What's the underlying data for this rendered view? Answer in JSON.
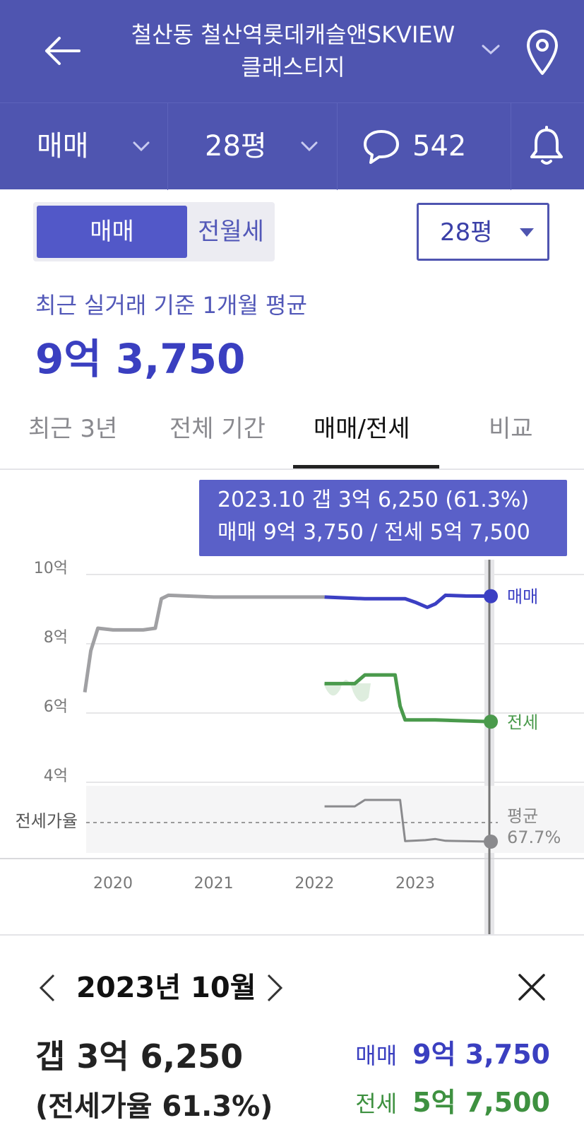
{
  "header": {
    "title_line1": "철산동 철산역롯데캐슬앤SKVIEW",
    "title_line2": "클래스티지"
  },
  "subbar": {
    "trade_type": "매매",
    "size": "28평",
    "comment_count": "542"
  },
  "toggle": {
    "sale": "매매",
    "rent": "전월세"
  },
  "size_select": "28평",
  "average": {
    "caption": "최근 실거래 기준 1개월 평균",
    "price": "9억 3,750"
  },
  "tabs": [
    {
      "label": "최근 3년"
    },
    {
      "label": "전체 기간"
    },
    {
      "label": "매매/전세"
    },
    {
      "label": "비교"
    }
  ],
  "tooltip": {
    "line1": "2023.10  갭 3억 6,250 (61.3%)",
    "line2": "매매 9억 3,750 / 전세 5억 7,500"
  },
  "chart_data": {
    "type": "line",
    "ylim": [
      4,
      10
    ],
    "yticks": [
      "10억",
      "8억",
      "6억",
      "4억"
    ],
    "xticks": [
      "2020",
      "2021",
      "2022",
      "2023"
    ],
    "ratio_axis_label": "전세가율",
    "ratio_avg_label": "평균",
    "ratio_avg_value": "67.7%",
    "series": [
      {
        "name": "매매",
        "color": "#3b3fc3",
        "unit": "억",
        "x": [
          2019.72,
          2019.78,
          2019.85,
          2020.0,
          2020.3,
          2020.42,
          2020.48,
          2020.55,
          2021.0,
          2021.5,
          2022.1,
          2022.5,
          2022.9,
          2023.0,
          2023.12,
          2023.2,
          2023.3,
          2023.5,
          2023.75
        ],
        "values": [
          6.6,
          7.8,
          8.45,
          8.4,
          8.4,
          8.45,
          9.3,
          9.4,
          9.35,
          9.35,
          9.35,
          9.3,
          9.3,
          9.2,
          9.05,
          9.15,
          9.4,
          9.38,
          9.375
        ]
      },
      {
        "name": "전세",
        "color": "#4a9a4c",
        "unit": "억",
        "x": [
          2022.1,
          2022.4,
          2022.5,
          2022.8,
          2022.85,
          2022.9,
          2023.2,
          2023.75
        ],
        "values": [
          6.85,
          6.85,
          7.1,
          7.1,
          6.2,
          5.8,
          5.8,
          5.75
        ]
      },
      {
        "name": "전세가율",
        "color": "#666666",
        "x": [
          2022.1,
          2022.4,
          2022.5,
          2022.85,
          2022.9,
          2023.1,
          2023.2,
          2023.3,
          2023.75
        ],
        "values": [
          73.3,
          73.3,
          75.5,
          75.5,
          61.5,
          61.8,
          62.2,
          61.6,
          61.3
        ]
      }
    ]
  },
  "panel": {
    "date": "2023년 10월",
    "gap_amount": "갭 3억 6,250",
    "gap_ratio": "(전세가율 61.3%)",
    "sale_label": "매매",
    "sale_value": "9억 3,750",
    "jeonse_label": "전세",
    "jeonse_value": "5억 7,500"
  }
}
